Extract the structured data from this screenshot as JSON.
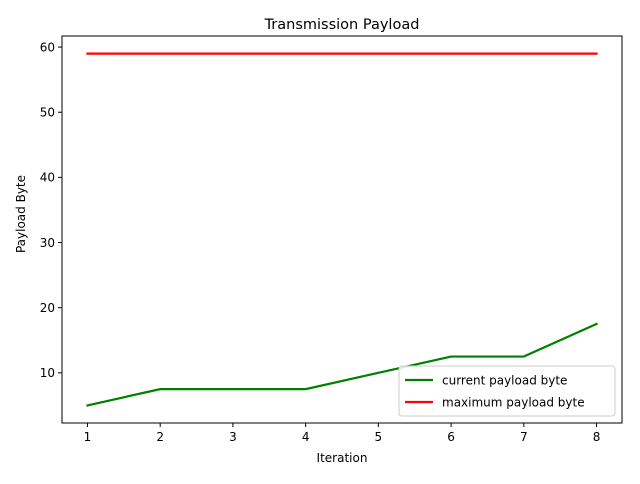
{
  "chart_data": {
    "type": "line",
    "title": "Transmission Payload",
    "xlabel": "Iteration",
    "ylabel": "Payload Byte",
    "x": [
      1,
      2,
      3,
      4,
      5,
      6,
      7,
      8
    ],
    "xlim": [
      0.65,
      8.35
    ],
    "ylim": [
      2.3,
      61.7
    ],
    "xticks": [
      1,
      2,
      3,
      4,
      5,
      6,
      7,
      8
    ],
    "yticks": [
      10,
      20,
      30,
      40,
      50,
      60
    ],
    "grid": false,
    "legend_position": "lower-right",
    "series": [
      {
        "name": "current payload byte",
        "color": "#008000",
        "values": [
          5,
          7.5,
          7.5,
          7.5,
          10,
          12.5,
          12.5,
          17.5
        ]
      },
      {
        "name": "maximum payload byte",
        "color": "#ff0000",
        "values": [
          59,
          59,
          59,
          59,
          59,
          59,
          59,
          59
        ]
      }
    ]
  }
}
